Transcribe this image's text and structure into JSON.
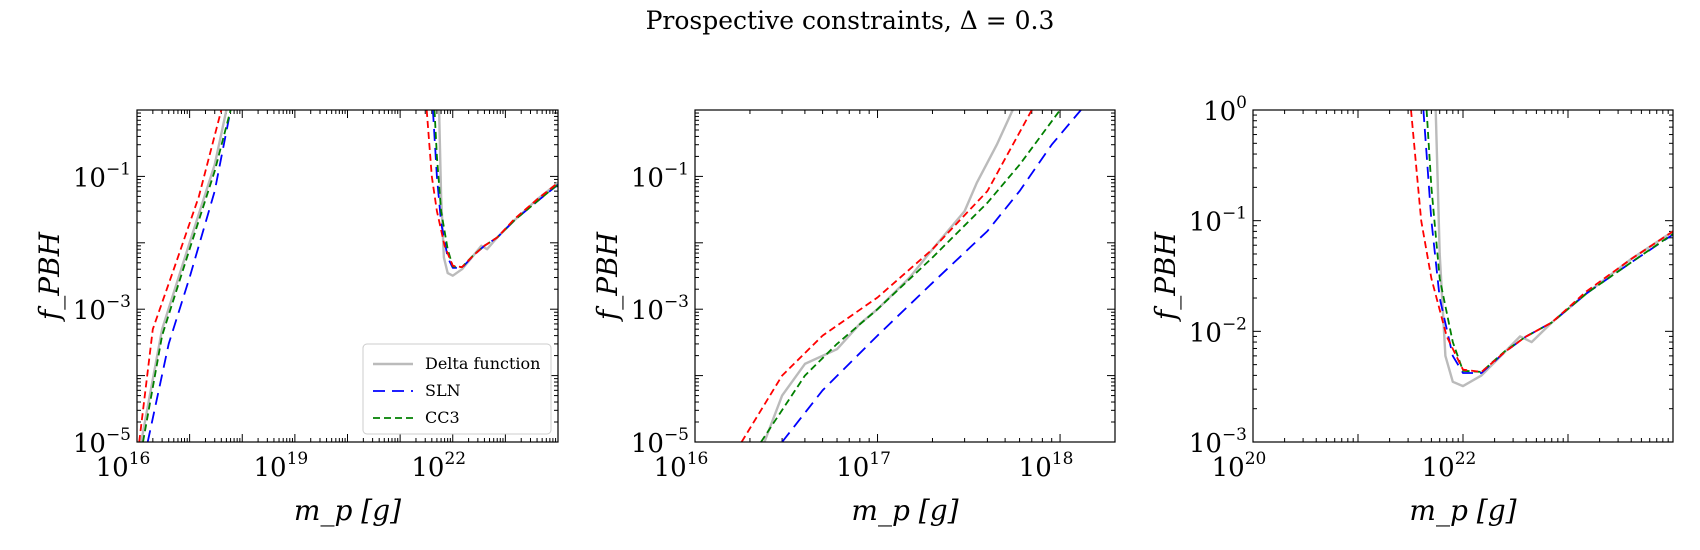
{
  "title": "Prospective constraints, Δ = 0.3",
  "legend": {
    "placement": "lower-right",
    "entries": [
      {
        "name": "Delta function",
        "color": "#bbbbbb",
        "style": "solid"
      },
      {
        "name": "SLN",
        "color": "#0000ff",
        "style": "long-dash"
      },
      {
        "name": "CC3",
        "color": "#008000",
        "style": "dash"
      }
    ],
    "extra_series": [
      {
        "color": "#ff0000",
        "style": "dash"
      }
    ]
  },
  "chart_data": [
    {
      "type": "line",
      "xlabel": "m_p [g]",
      "ylabel": "f_PBH",
      "xscale": "log",
      "yscale": "log",
      "xlim": [
        1e+16,
        1e+24
      ],
      "ylim": [
        1e-05,
        1
      ],
      "xticks": [
        {
          "base": "10",
          "exp": "16"
        },
        {
          "base": "10",
          "exp": "19"
        },
        {
          "base": "10",
          "exp": "22"
        }
      ],
      "yticks": [
        {
          "base": "10",
          "exp": "−5",
          "value": 1e-05
        },
        {
          "base": "10",
          "exp": "−3",
          "value": 0.001
        },
        {
          "base": "10",
          "exp": "−1",
          "value": 0.1
        }
      ],
      "legend_shown": true,
      "series": [
        {
          "name": "Delta function",
          "segments": [
            [
              [
                1.2e+16,
                1e-05
              ],
              [
                3e+16,
                0.0005
              ],
              [
                1e+17,
                0.01
              ],
              [
                3e+17,
                0.15
              ],
              [
                5e+17,
                1
              ]
            ],
            [
              [
                5.5e+21,
                1
              ],
              [
                6e+21,
                0.05
              ],
              [
                6.8e+21,
                0.006
              ],
              [
                8e+21,
                0.0035
              ],
              [
                1e+22,
                0.0032
              ],
              [
                1.5e+22,
                0.004
              ],
              [
                2.5e+22,
                0.0065
              ],
              [
                3.5e+22,
                0.009
              ],
              [
                4.5e+22,
                0.008
              ],
              [
                7e+22,
                0.012
              ],
              [
                1.5e+23,
                0.022
              ],
              [
                4e+23,
                0.045
              ],
              [
                1e+24,
                0.08
              ]
            ]
          ]
        },
        {
          "name": "SLN",
          "segments": [
            [
              [
                1.6e+16,
                1e-05
              ],
              [
                4e+16,
                0.0003
              ],
              [
                1e+17,
                0.003
              ],
              [
                3e+17,
                0.06
              ],
              [
                6e+17,
                1
              ]
            ],
            [
              [
                4.2e+21,
                1
              ],
              [
                5e+21,
                0.1
              ],
              [
                6e+21,
                0.02
              ],
              [
                8e+21,
                0.006
              ],
              [
                1e+22,
                0.0042
              ],
              [
                1.5e+22,
                0.0042
              ],
              [
                2.5e+22,
                0.0065
              ],
              [
                4e+22,
                0.009
              ],
              [
                7e+22,
                0.012
              ],
              [
                1.5e+23,
                0.022
              ],
              [
                4e+23,
                0.042
              ],
              [
                1e+24,
                0.075
              ]
            ]
          ]
        },
        {
          "name": "CC3",
          "segments": [
            [
              [
                1.3e+16,
                1e-05
              ],
              [
                3e+16,
                0.0004
              ],
              [
                1e+17,
                0.008
              ],
              [
                3e+17,
                0.12
              ],
              [
                6e+17,
                1
              ]
            ],
            [
              [
                4.5e+21,
                1
              ],
              [
                5e+21,
                0.2
              ],
              [
                6e+21,
                0.03
              ],
              [
                8e+21,
                0.008
              ],
              [
                1e+22,
                0.0044
              ],
              [
                1.5e+22,
                0.0043
              ],
              [
                2.5e+22,
                0.0066
              ],
              [
                4e+22,
                0.009
              ],
              [
                7e+22,
                0.012
              ],
              [
                1.5e+23,
                0.022
              ],
              [
                4e+23,
                0.042
              ],
              [
                1e+24,
                0.076
              ]
            ]
          ]
        },
        {
          "segments": [
            [
              [
                1.1e+16,
                1e-05
              ],
              [
                2e+16,
                0.0005
              ],
              [
                5e+16,
                0.004
              ],
              [
                1.5e+17,
                0.05
              ],
              [
                4e+17,
                1
              ]
            ],
            [
              [
                3.2e+21,
                1
              ],
              [
                4e+21,
                0.1
              ],
              [
                5e+21,
                0.03
              ],
              [
                7e+21,
                0.009
              ],
              [
                1e+22,
                0.0045
              ],
              [
                1.5e+22,
                0.0043
              ],
              [
                2.5e+22,
                0.0065
              ],
              [
                4e+22,
                0.009
              ],
              [
                7e+22,
                0.012
              ],
              [
                1.5e+23,
                0.023
              ],
              [
                4e+23,
                0.045
              ],
              [
                1e+24,
                0.08
              ]
            ]
          ]
        }
      ]
    },
    {
      "type": "line",
      "xlabel": "m_p [g]",
      "ylabel": "f_PBH",
      "xscale": "log",
      "yscale": "log",
      "xlim": [
        1e+16,
        2e+18
      ],
      "ylim": [
        1e-05,
        1
      ],
      "xticks": [
        {
          "base": "10",
          "exp": "16",
          "value": 1e+16
        },
        {
          "base": "10",
          "exp": "17",
          "value": 1e+17
        },
        {
          "base": "10",
          "exp": "18",
          "value": 1e+18
        }
      ],
      "yticks": [
        {
          "base": "10",
          "exp": "−5",
          "value": 1e-05
        },
        {
          "base": "10",
          "exp": "−3",
          "value": 0.001
        },
        {
          "base": "10",
          "exp": "−1",
          "value": 0.1
        }
      ],
      "legend_shown": false,
      "series": [
        {
          "name": "Delta function",
          "segments": [
            [
              [
                2.4e+16,
                1e-05
              ],
              [
                3e+16,
                5e-05
              ],
              [
                4e+16,
                0.00015
              ],
              [
                6e+16,
                0.00025
              ],
              [
                8e+16,
                0.0006
              ],
              [
                1e+17,
                0.001
              ],
              [
                1.5e+17,
                0.003
              ],
              [
                2e+17,
                0.008
              ],
              [
                3e+17,
                0.03
              ],
              [
                3.5e+17,
                0.08
              ],
              [
                4.5e+17,
                0.3
              ],
              [
                5.5e+17,
                1
              ]
            ]
          ]
        },
        {
          "name": "SLN",
          "segments": [
            [
              [
                3e+16,
                1e-05
              ],
              [
                5e+16,
                6e-05
              ],
              [
                1e+17,
                0.0004
              ],
              [
                2e+17,
                0.0025
              ],
              [
                4e+17,
                0.015
              ],
              [
                6e+17,
                0.06
              ],
              [
                9e+17,
                0.3
              ],
              [
                1.3e+18,
                1
              ]
            ]
          ]
        },
        {
          "name": "CC3",
          "segments": [
            [
              [
                2.3e+16,
                1e-05
              ],
              [
                4e+16,
                0.0001
              ],
              [
                6e+16,
                0.0003
              ],
              [
                1e+17,
                0.001
              ],
              [
                2e+17,
                0.006
              ],
              [
                4e+17,
                0.04
              ],
              [
                6e+17,
                0.15
              ],
              [
                1e+18,
                1
              ]
            ]
          ]
        },
        {
          "segments": [
            [
              [
                1.8e+16,
                1e-05
              ],
              [
                3e+16,
                0.0001
              ],
              [
                5e+16,
                0.0004
              ],
              [
                1e+17,
                0.0015
              ],
              [
                2e+17,
                0.008
              ],
              [
                4e+17,
                0.06
              ],
              [
                7e+17,
                1
              ]
            ]
          ]
        }
      ]
    },
    {
      "type": "line",
      "xlabel": "m_p [g]",
      "ylabel": "f_PBH",
      "xscale": "log",
      "yscale": "log",
      "xlim": [
        1e+20,
        1e+24
      ],
      "ylim": [
        0.001,
        1
      ],
      "xticks": [
        {
          "base": "10",
          "exp": "20",
          "value": 1e+20
        },
        {
          "base": "10",
          "exp": "22",
          "value": 1e+22
        }
      ],
      "yticks": [
        {
          "base": "10",
          "exp": "−3",
          "value": 0.001
        },
        {
          "base": "10",
          "exp": "−2",
          "value": 0.01
        },
        {
          "base": "10",
          "exp": "−1",
          "value": 0.1
        },
        {
          "base": "10",
          "exp": "0",
          "value": 1
        }
      ],
      "legend_shown": false,
      "series": [
        {
          "name": "Delta function",
          "segments": [
            [
              [
                5.5e+21,
                1
              ],
              [
                6e+21,
                0.05
              ],
              [
                6.8e+21,
                0.006
              ],
              [
                8e+21,
                0.0035
              ],
              [
                1e+22,
                0.0032
              ],
              [
                1.5e+22,
                0.004
              ],
              [
                2.5e+22,
                0.0065
              ],
              [
                3.5e+22,
                0.009
              ],
              [
                4.5e+22,
                0.008
              ],
              [
                7e+22,
                0.012
              ],
              [
                1.5e+23,
                0.022
              ],
              [
                4e+23,
                0.045
              ],
              [
                1e+24,
                0.08
              ]
            ]
          ]
        },
        {
          "name": "SLN",
          "segments": [
            [
              [
                4.2e+21,
                1
              ],
              [
                5e+21,
                0.1
              ],
              [
                6e+21,
                0.02
              ],
              [
                8e+21,
                0.006
              ],
              [
                1e+22,
                0.0042
              ],
              [
                1.5e+22,
                0.0042
              ],
              [
                2.5e+22,
                0.0065
              ],
              [
                4e+22,
                0.009
              ],
              [
                7e+22,
                0.012
              ],
              [
                1.5e+23,
                0.022
              ],
              [
                4e+23,
                0.042
              ],
              [
                1e+24,
                0.075
              ]
            ]
          ]
        },
        {
          "name": "CC3",
          "segments": [
            [
              [
                4.5e+21,
                1
              ],
              [
                5e+21,
                0.2
              ],
              [
                6e+21,
                0.03
              ],
              [
                8e+21,
                0.008
              ],
              [
                1e+22,
                0.0044
              ],
              [
                1.5e+22,
                0.0043
              ],
              [
                2.5e+22,
                0.0066
              ],
              [
                4e+22,
                0.009
              ],
              [
                7e+22,
                0.012
              ],
              [
                1.5e+23,
                0.022
              ],
              [
                4e+23,
                0.042
              ],
              [
                1e+24,
                0.076
              ]
            ]
          ]
        },
        {
          "segments": [
            [
              [
                3.2e+21,
                1
              ],
              [
                4e+21,
                0.1
              ],
              [
                5e+21,
                0.03
              ],
              [
                7e+21,
                0.009
              ],
              [
                1e+22,
                0.0045
              ],
              [
                1.5e+22,
                0.0043
              ],
              [
                2.5e+22,
                0.0065
              ],
              [
                4e+22,
                0.009
              ],
              [
                7e+22,
                0.012
              ],
              [
                1.5e+23,
                0.023
              ],
              [
                4e+23,
                0.045
              ],
              [
                1e+24,
                0.08
              ]
            ]
          ]
        }
      ]
    }
  ]
}
